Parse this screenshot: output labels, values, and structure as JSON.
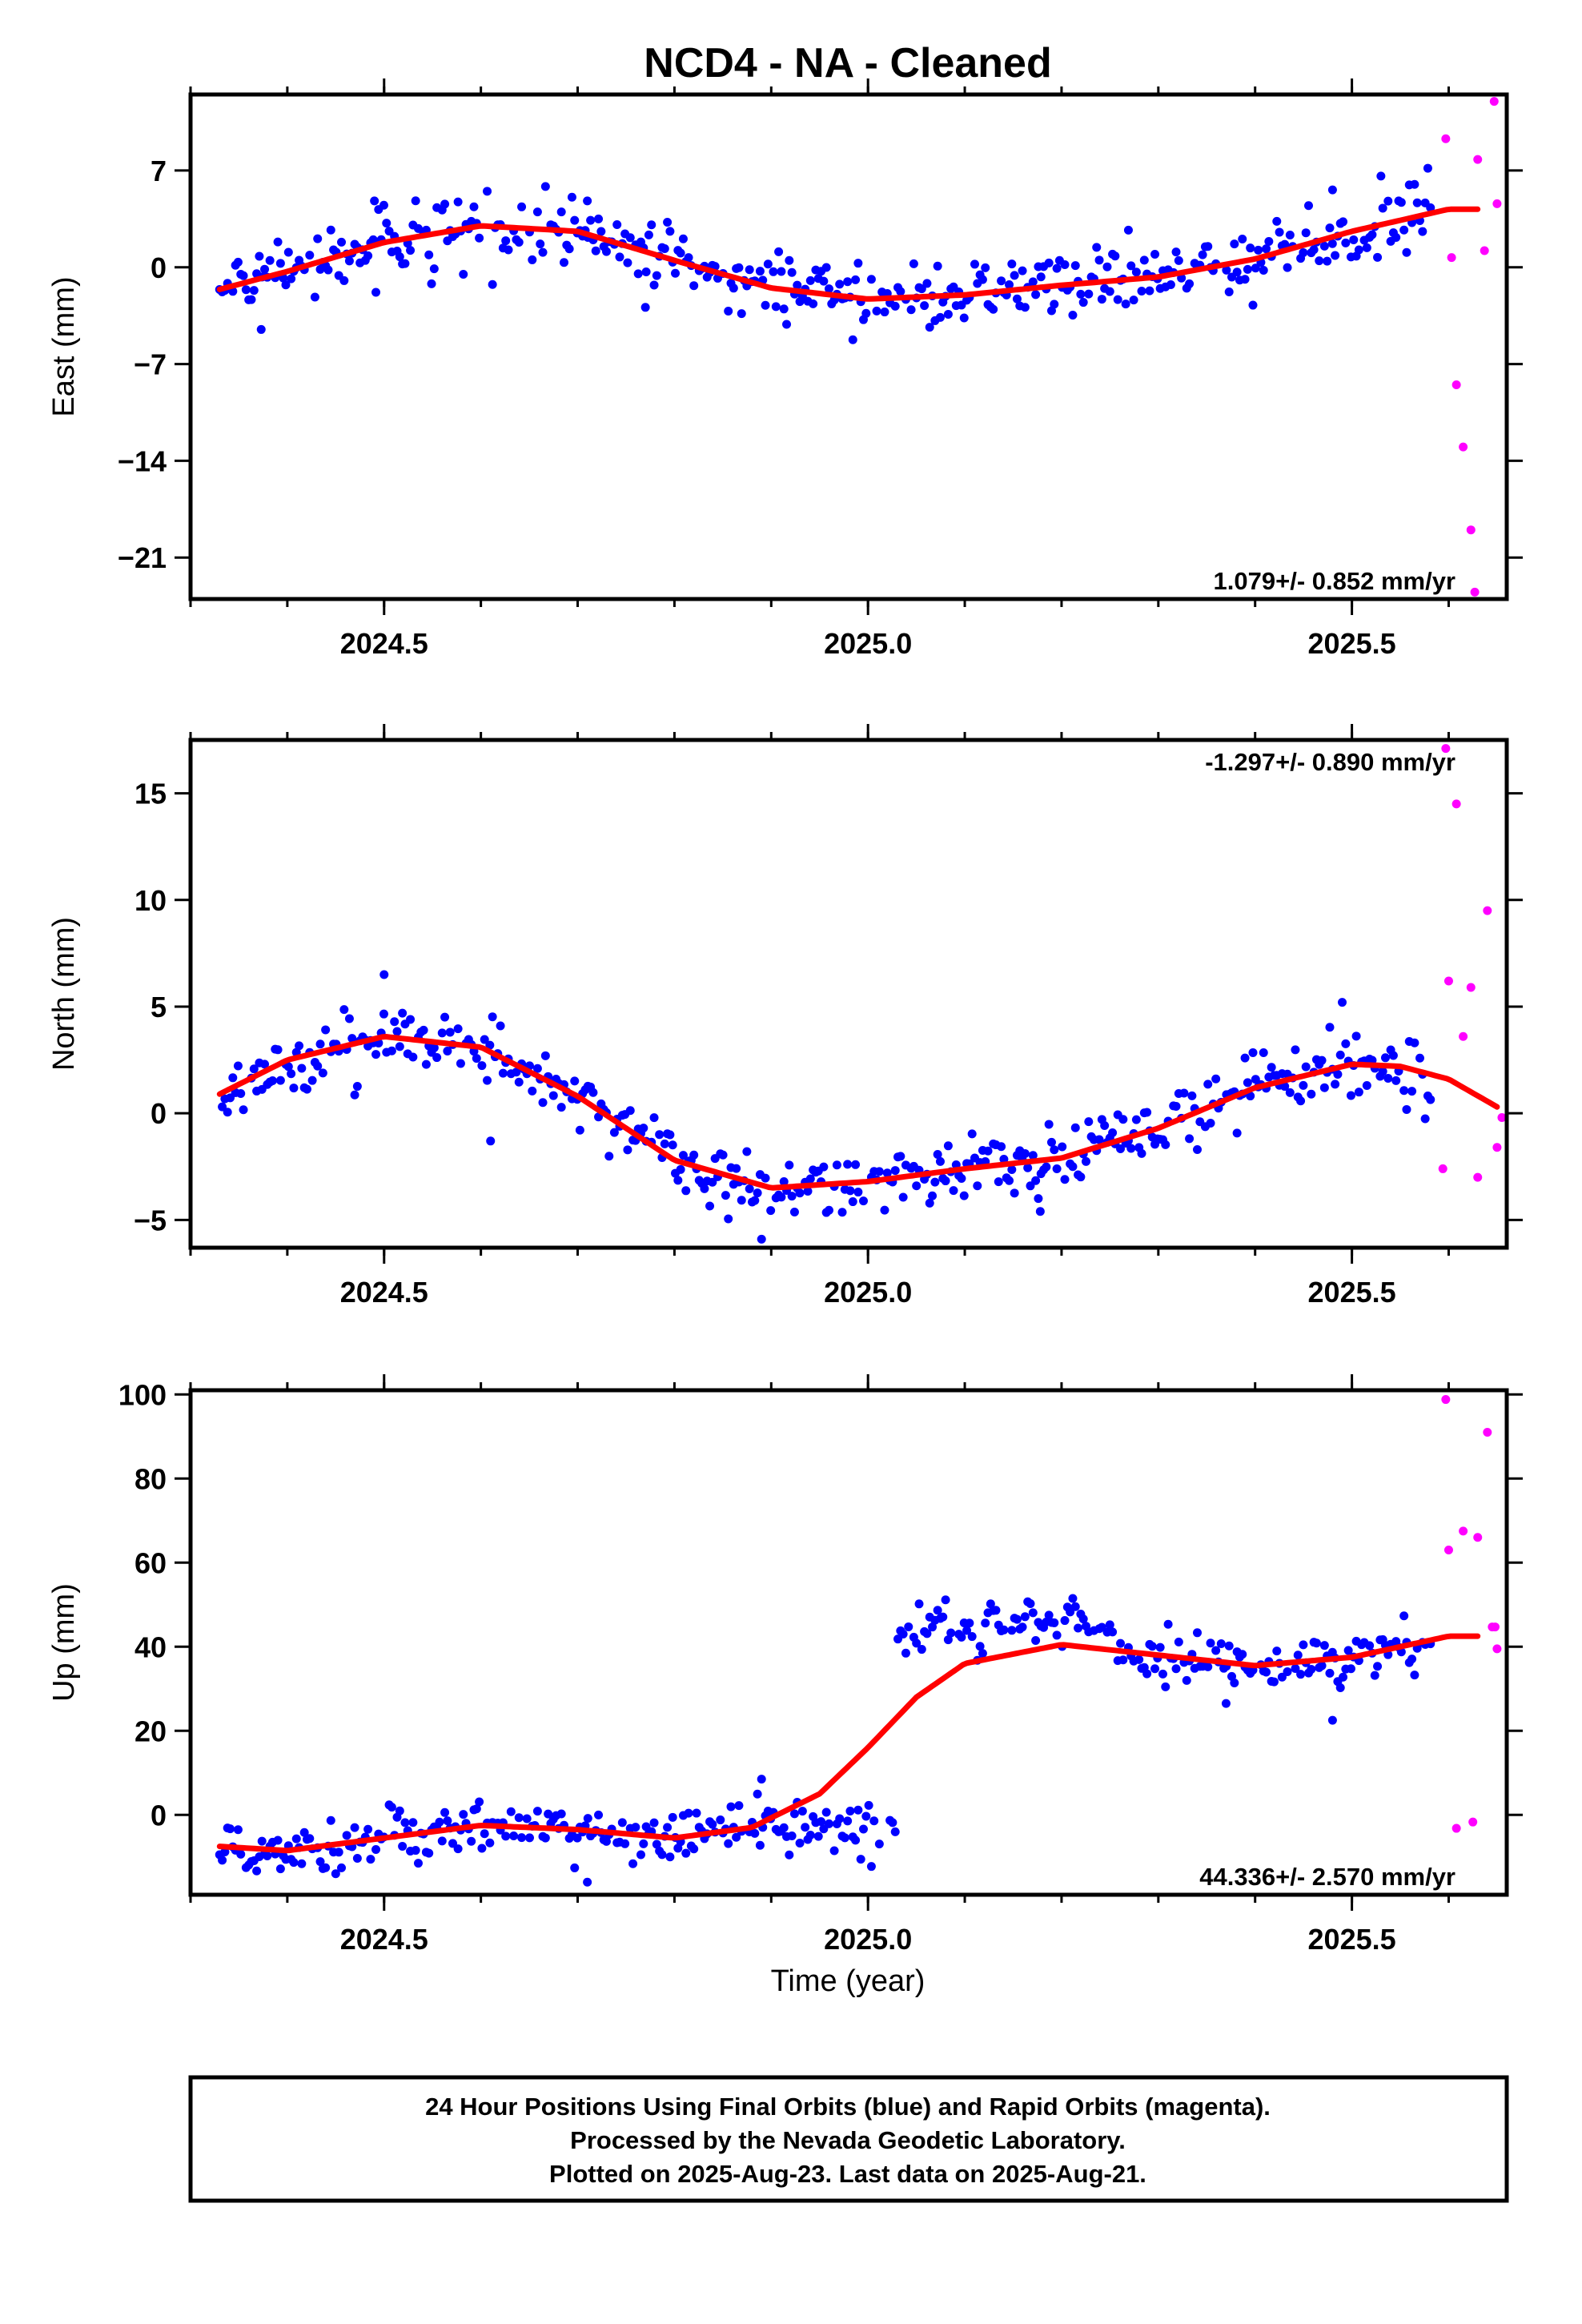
{
  "title": "NCD4  - NA - Cleaned",
  "xlabel": "Time (year)",
  "footer": {
    "line1": "24 Hour Positions Using Final Orbits (blue) and Rapid Orbits (magenta).",
    "line2": "Processed by the Nevada Geodetic Laboratory.",
    "line3": "Plotted on 2025-Aug-23. Last data on 2025-Aug-21."
  },
  "colors": {
    "final_orbits": "#0000ff",
    "rapid_orbits": "#ff00ff",
    "model_fit": "#ff0000",
    "frame": "#000000"
  },
  "chart_data": [
    {
      "type": "scatter",
      "id": "east",
      "ylabel": "East (mm)",
      "rate_text": "1.079+/- 0.852 mm/yr",
      "rate_position": "bottom-right",
      "xlim": [
        2024.3,
        2025.66
      ],
      "ylim": [
        -24,
        12.5
      ],
      "x_ticks": [
        2024.5,
        2025.0,
        2025.5
      ],
      "x_tick_labels": [
        "2024.5",
        "2025.0",
        "2025.5"
      ],
      "y_ticks": [
        7,
        0,
        -7,
        -14,
        -21
      ],
      "y_tick_labels": [
        "7",
        "0",
        "−7",
        "−14",
        "−21"
      ],
      "fit_curve": {
        "x": [
          2024.33,
          2024.4,
          2024.5,
          2024.6,
          2024.7,
          2024.8,
          2024.9,
          2025.0,
          2025.1,
          2025.2,
          2025.3,
          2025.4,
          2025.5,
          2025.6,
          2025.63
        ],
        "y": [
          -1.6,
          -0.3,
          1.8,
          3.0,
          2.6,
          0.5,
          -1.5,
          -2.3,
          -2.0,
          -1.3,
          -0.7,
          0.6,
          2.6,
          4.2,
          4.2
        ]
      },
      "final_orbits_daily": {
        "start": 2024.33,
        "end": 2025.583,
        "scatter_mm": 1.2,
        "spikes": [
          [
            2024.373,
            -4.5
          ],
          [
            2024.49,
            4.8
          ],
          [
            2024.71,
            4.8
          ],
          [
            2024.77,
            -2.9
          ],
          [
            2025.48,
            5.6
          ],
          [
            2025.53,
            6.6
          ]
        ]
      },
      "rapid_orbits": {
        "x": [
          2025.597,
          2025.603,
          2025.608,
          2025.615,
          2025.623,
          2025.63,
          2025.637
        ],
        "y": [
          9.3,
          0.7,
          -8.5,
          -13,
          -19,
          7.8,
          1.2
        ],
        "extra": [
          [
            2025.647,
            12
          ],
          [
            2025.65,
            4.6
          ],
          [
            2025.627,
            -23.5
          ]
        ]
      }
    },
    {
      "type": "scatter",
      "id": "north",
      "ylabel": "North (mm)",
      "rate_text": "-1.297+/- 0.890 mm/yr",
      "rate_position": "top-right",
      "xlim": [
        2024.3,
        2025.66
      ],
      "ylim": [
        -6.3,
        17.5
      ],
      "x_ticks": [
        2024.5,
        2025.0,
        2025.5
      ],
      "x_tick_labels": [
        "2024.5",
        "2025.0",
        "2025.5"
      ],
      "y_ticks": [
        15,
        10,
        5,
        0,
        -5
      ],
      "y_tick_labels": [
        "15",
        "10",
        "5",
        "0",
        "−5"
      ],
      "fit_curve": {
        "x": [
          2024.33,
          2024.4,
          2024.5,
          2024.6,
          2024.7,
          2024.8,
          2024.9,
          2025.0,
          2025.1,
          2025.2,
          2025.3,
          2025.4,
          2025.5,
          2025.55,
          2025.6,
          2025.65
        ],
        "y": [
          0.9,
          2.5,
          3.6,
          3.1,
          0.8,
          -2.2,
          -3.5,
          -3.2,
          -2.6,
          -2.1,
          -0.7,
          1.2,
          2.3,
          2.2,
          1.6,
          0.3
        ]
      },
      "final_orbits_daily": {
        "start": 2024.33,
        "end": 2025.583,
        "scatter_mm": 0.8,
        "spikes": [
          [
            2024.5,
            6.5
          ],
          [
            2024.61,
            -1.3
          ],
          [
            2024.89,
            -5.9
          ],
          [
            2025.178,
            -4.6
          ],
          [
            2025.49,
            5.2
          ]
        ]
      },
      "rapid_orbits": {
        "x": [
          2025.597,
          2025.6,
          2025.608,
          2025.615,
          2025.623,
          2025.63,
          2025.64,
          2025.65
        ],
        "y": [
          17.1,
          6.2,
          14.5,
          3.6,
          5.9,
          -3.0,
          9.5,
          -1.6
        ],
        "extra": [
          [
            2025.594,
            -2.6
          ],
          [
            2025.655,
            -0.2
          ]
        ]
      }
    },
    {
      "type": "scatter",
      "id": "up",
      "ylabel": "Up (mm)",
      "rate_text": "44.336+/- 2.570 mm/yr",
      "rate_position": "bottom-right",
      "xlim": [
        2024.3,
        2025.66
      ],
      "ylim": [
        -19,
        101
      ],
      "x_ticks": [
        2024.5,
        2025.0,
        2025.5
      ],
      "x_tick_labels": [
        "2024.5",
        "2025.0",
        "2025.5"
      ],
      "y_ticks": [
        100,
        80,
        60,
        40,
        20,
        0
      ],
      "y_tick_labels": [
        "100",
        "80",
        "60",
        "40",
        "20",
        "0"
      ],
      "fit_curve": {
        "x": [
          2024.33,
          2024.4,
          2024.5,
          2024.6,
          2024.7,
          2024.8,
          2024.88,
          2024.95,
          2025.0,
          2025.05,
          2025.1,
          2025.2,
          2025.3,
          2025.4,
          2025.5,
          2025.6,
          2025.63
        ],
        "y": [
          -7.5,
          -8.5,
          -5.5,
          -2.5,
          -3.5,
          -5.5,
          -3.0,
          5.0,
          16.0,
          28.0,
          36.0,
          40.5,
          38.0,
          35.5,
          37.5,
          42.5,
          42.5
        ]
      },
      "final_orbits_daily": {
        "start": 2024.33,
        "end": 2025.583,
        "offset_at": 2025.03,
        "scatter_mm": 3.2,
        "spikes": [
          [
            2024.71,
            -16
          ],
          [
            2024.45,
            -14
          ],
          [
            2024.89,
            8.5
          ],
          [
            2025.48,
            22.5
          ],
          [
            2025.37,
            26.5
          ]
        ]
      },
      "rapid_orbits": {
        "x": [
          2025.597,
          2025.6,
          2025.608,
          2025.615,
          2025.625,
          2025.64,
          2025.645,
          2025.65
        ],
        "y": [
          98.8,
          63.0,
          -3.2,
          67.5,
          -1.7,
          91.0,
          44.7,
          39.5
        ],
        "extra": [
          [
            2025.63,
            66.0
          ],
          [
            2025.648,
            44.7
          ]
        ]
      }
    }
  ]
}
